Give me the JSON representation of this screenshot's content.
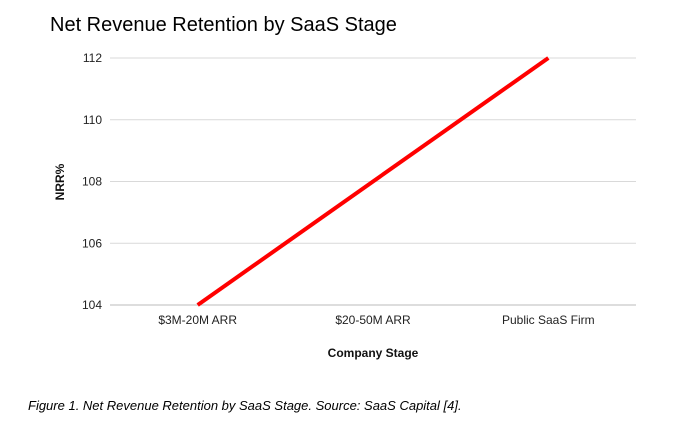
{
  "chart_data": {
    "type": "line",
    "title": "Net Revenue Retention by SaaS Stage",
    "xlabel": "Company Stage",
    "ylabel": "NRR%",
    "categories": [
      "$3M-20M ARR",
      "$20-50M ARR",
      "Public SaaS Firm"
    ],
    "series": [
      {
        "name": "NRR%",
        "values": [
          104,
          108,
          112
        ],
        "color": "#ff0000"
      }
    ],
    "ylim": [
      104,
      112
    ],
    "yticks": [
      104,
      106,
      108,
      110,
      112
    ],
    "grid": true,
    "legend": "none"
  },
  "caption": "Figure 1. Net Revenue Retention by SaaS Stage. Source: SaaS Capital [4]."
}
